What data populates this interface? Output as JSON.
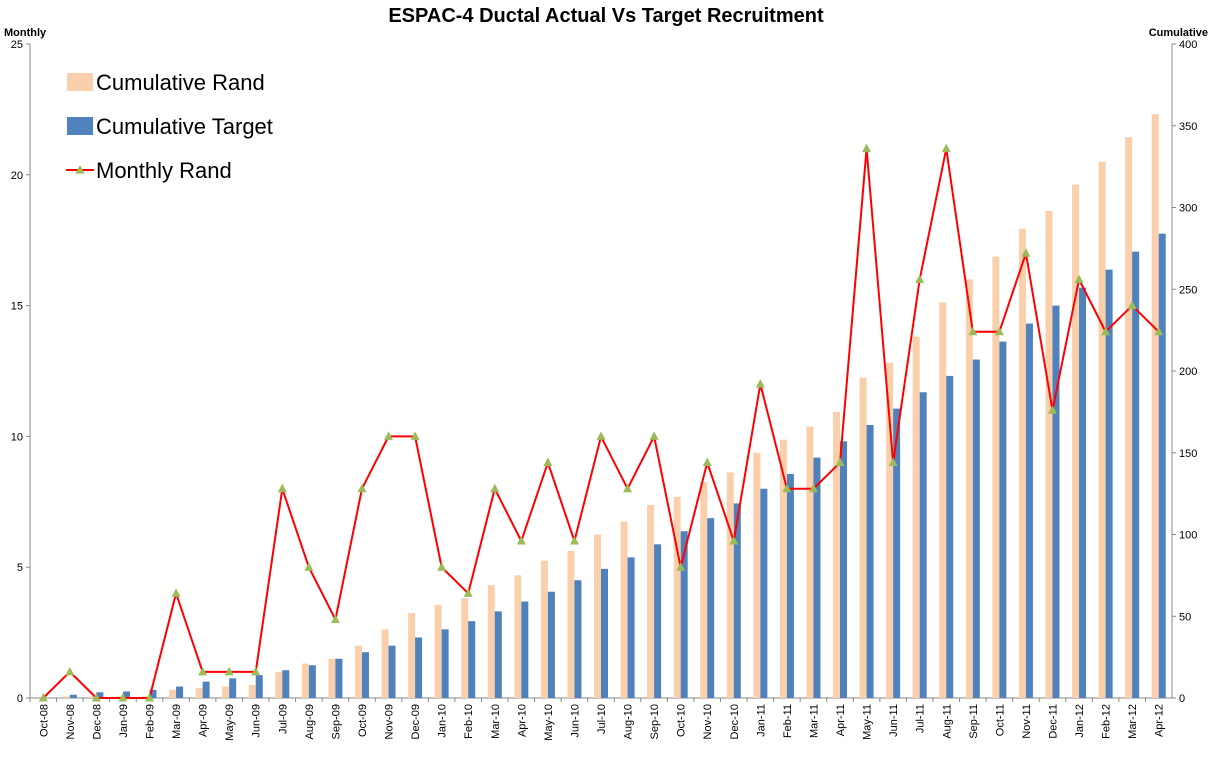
{
  "chart_data": {
    "type": "combo",
    "title": "ESPAC-4 Ductal Actual Vs Target Recruitment",
    "y_label": "Monthly",
    "y2_label": "Cumulative",
    "categories": [
      "Oct-08",
      "Nov-08",
      "Dec-08",
      "Jan-09",
      "Feb-09",
      "Mar-09",
      "Apr-09",
      "May-09",
      "Jun-09",
      "Jul-09",
      "Aug-09",
      "Sep-09",
      "Oct-09",
      "Nov-09",
      "Dec-09",
      "Jan-10",
      "Feb-10",
      "Mar-10",
      "Apr-10",
      "May-10",
      "Jun-10",
      "Jul-10",
      "Aug-10",
      "Sep-10",
      "Oct-10",
      "Nov-10",
      "Dec-10",
      "Jan-11",
      "Feb-11",
      "Mar-11",
      "Apr-11",
      "May-11",
      "Jun-11",
      "Jul-11",
      "Aug-11",
      "Sep-11",
      "Oct-11",
      "Nov-11",
      "Dec-11",
      "Jan-12",
      "Feb-12",
      "Mar-12",
      "Apr-12"
    ],
    "series": [
      {
        "name": "Cumulative Rand",
        "type": "bar",
        "axis": "y2",
        "color": "#fad0ac",
        "values": [
          0,
          1,
          1,
          1,
          1,
          5,
          6,
          7,
          8,
          16,
          21,
          24,
          32,
          42,
          52,
          57,
          61,
          69,
          75,
          84,
          90,
          100,
          108,
          118,
          123,
          132,
          138,
          150,
          158,
          166,
          175,
          196,
          205,
          221,
          242,
          256,
          270,
          287,
          298,
          314,
          328,
          343,
          357
        ]
      },
      {
        "name": "Cumulative Target",
        "type": "bar",
        "axis": "y2",
        "color": "#4f81bd",
        "values": [
          0,
          2,
          3.5,
          4,
          5,
          7,
          10,
          12,
          14,
          17,
          20,
          24,
          28,
          32,
          37,
          42,
          47,
          53,
          59,
          65,
          72,
          79,
          86,
          94,
          102,
          110,
          119,
          128,
          137,
          147,
          157,
          167,
          177,
          187,
          197,
          207,
          218,
          229,
          240,
          251,
          262,
          273,
          284
        ]
      },
      {
        "name": "Monthly Rand",
        "type": "line",
        "axis": "y",
        "color": "#ff0000",
        "marker_color": "#9bbb59",
        "values": [
          0,
          1,
          0,
          0,
          0,
          4,
          1,
          1,
          1,
          8,
          5,
          3,
          8,
          10,
          10,
          5,
          4,
          8,
          6,
          9,
          6,
          10,
          8,
          10,
          5,
          9,
          6,
          12,
          8,
          8,
          9,
          21,
          9,
          16,
          21,
          14,
          14,
          17,
          11,
          16,
          14,
          15,
          14
        ]
      }
    ],
    "ylim": [
      0,
      25
    ],
    "yticks": [
      0,
      5,
      10,
      15,
      20,
      25
    ],
    "y2lim": [
      0,
      400
    ],
    "y2ticks": [
      0,
      50,
      100,
      150,
      200,
      250,
      300,
      350,
      400
    ],
    "legend": "top-left"
  }
}
